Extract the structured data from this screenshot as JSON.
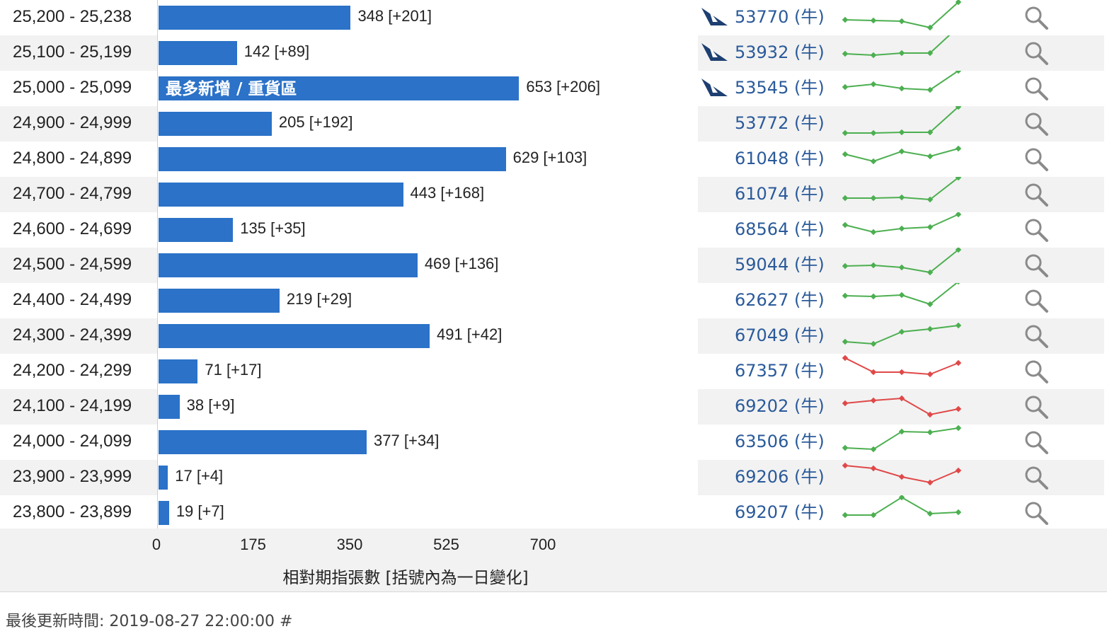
{
  "chart_data": {
    "type": "bar",
    "orientation": "horizontal",
    "title": "",
    "xlabel": "相對期指張數 [括號內為一日變化]",
    "ylabel": "",
    "xlim": [
      0,
      700
    ],
    "x_ticks": [
      "0",
      "175",
      "350",
      "525",
      "700"
    ],
    "categories": [
      "25,200 - 25,238",
      "25,100 - 25,199",
      "25,000 - 25,099",
      "24,900 - 24,999",
      "24,800 - 24,899",
      "24,700 - 24,799",
      "24,600 - 24,699",
      "24,500 - 24,599",
      "24,400 - 24,499",
      "24,300 - 24,399",
      "24,200 - 24,299",
      "24,100 - 24,199",
      "24,000 - 24,099",
      "23,900 - 23,999",
      "23,800 - 23,899"
    ],
    "values": [
      348,
      142,
      653,
      205,
      629,
      443,
      135,
      469,
      219,
      491,
      71,
      38,
      377,
      17,
      19
    ],
    "value_labels": [
      "348 [+201]",
      "142 [+89]",
      "653 [+206]",
      "205 [+192]",
      "629 [+103]",
      "443 [+168]",
      "135 [+35]",
      "469 [+136]",
      "219 [+29]",
      "491 [+42]",
      "71 [+17]",
      "38 [+9]",
      "377 [+34]",
      "17 [+4]",
      "19 [+7]"
    ],
    "annotations": [
      {
        "category_index": 2,
        "text": "最多新增 / 重貨區"
      }
    ],
    "grid": false,
    "legend": "none",
    "bar_color": "#2b72c8"
  },
  "warrants": [
    {
      "code": "53770 (牛)",
      "issuer_icon": "bird-logo-icon",
      "trend": [
        20,
        19,
        18,
        9,
        45
      ],
      "trend_color": "#4caf50"
    },
    {
      "code": "53932 (牛)",
      "issuer_icon": "bird-logo-icon",
      "trend": [
        22,
        20,
        23,
        23,
        60
      ],
      "trend_color": "#4caf50"
    },
    {
      "code": "53545 (牛)",
      "issuer_icon": "bird-logo-icon",
      "trend": [
        25,
        29,
        23,
        21,
        48
      ],
      "trend_color": "#4caf50"
    },
    {
      "code": "53772 (牛)",
      "issuer_icon": "",
      "trend": [
        10,
        10,
        11,
        11,
        47
      ],
      "trend_color": "#4caf50"
    },
    {
      "code": "61048 (牛)",
      "issuer_icon": "",
      "trend": [
        30,
        20,
        34,
        27,
        38
      ],
      "trend_color": "#4caf50"
    },
    {
      "code": "61074 (牛)",
      "issuer_icon": "",
      "trend": [
        18,
        18,
        19,
        16,
        47
      ],
      "trend_color": "#4caf50"
    },
    {
      "code": "68564 (牛)",
      "issuer_icon": "",
      "trend": [
        30,
        20,
        25,
        27,
        45
      ],
      "trend_color": "#4caf50"
    },
    {
      "code": "59044 (牛)",
      "issuer_icon": "",
      "trend": [
        22,
        23,
        20,
        13,
        45
      ],
      "trend_color": "#4caf50"
    },
    {
      "code": "62627 (牛)",
      "issuer_icon": "",
      "trend": [
        30,
        29,
        31,
        18,
        50
      ],
      "trend_color": "#4caf50"
    },
    {
      "code": "67049 (牛)",
      "issuer_icon": "",
      "trend": [
        15,
        12,
        29,
        33,
        38
      ],
      "trend_color": "#4caf50"
    },
    {
      "code": "67357 (牛)",
      "issuer_icon": "",
      "trend": [
        42,
        22,
        22,
        19,
        35
      ],
      "trend_color": "#e04848"
    },
    {
      "code": "69202 (牛)",
      "issuer_icon": "",
      "trend": [
        28,
        32,
        35,
        12,
        20
      ],
      "trend_color": "#e04848"
    },
    {
      "code": "63506 (牛)",
      "issuer_icon": "",
      "trend": [
        15,
        13,
        38,
        37,
        43
      ],
      "trend_color": "#4caf50"
    },
    {
      "code": "69206 (牛)",
      "issuer_icon": "",
      "trend": [
        40,
        36,
        24,
        16,
        33
      ],
      "trend_color": "#e04848"
    },
    {
      "code": "69207 (牛)",
      "issuer_icon": "",
      "trend": [
        20,
        20,
        45,
        22,
        24
      ],
      "trend_color": "#4caf50"
    }
  ],
  "search_icon": "magnifier-icon",
  "footer": {
    "updated": "最後更新時間: 2019-08-27 22:00:00 #"
  }
}
